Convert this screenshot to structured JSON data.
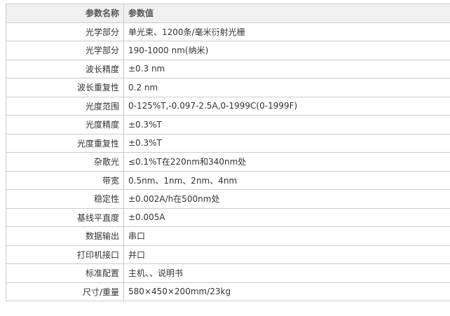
{
  "header": {
    "name": "参数名称",
    "value": "参数值"
  },
  "rows": [
    {
      "name": "光学部分",
      "value": "单光束、1200条/毫米衍射光栅"
    },
    {
      "name": "光学部分",
      "value": "190-1000 nm(纳米)"
    },
    {
      "name": "波长精度",
      "value": "±0.3 nm"
    },
    {
      "name": "波长重复性",
      "value": "0.2 nm"
    },
    {
      "name": "光度范围",
      "value": "0-125%T,-0.097-2.5A,0-1999C(0-1999F)"
    },
    {
      "name": "光度精度",
      "value": "±0.3%T"
    },
    {
      "name": "光度重复性",
      "value": "±0.3%T"
    },
    {
      "name": "杂散光",
      "value": "≤0.1%T在220nm和340nm处"
    },
    {
      "name": "带宽",
      "value": "0.5nm、1nm、2nm、4nm"
    },
    {
      "name": "稳定性",
      "value": "±0.002A/h在500nm处"
    },
    {
      "name": "基线平直度",
      "value": "±0.005A"
    },
    {
      "name": "数据输出",
      "value": "串口"
    },
    {
      "name": "打印机接口",
      "value": "并口"
    },
    {
      "name": "标准配置",
      "value": "主机、、说明书"
    },
    {
      "name": "尺寸/重量",
      "value": "580×450×200mm/23kg"
    }
  ]
}
